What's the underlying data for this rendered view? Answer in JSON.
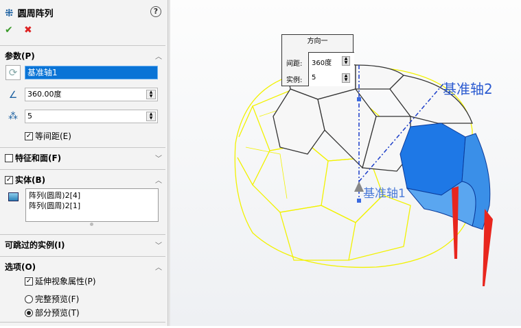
{
  "panel": {
    "title": "圆周阵列",
    "help": "?",
    "ok": "✔",
    "cancel": "✖",
    "params": {
      "title": "参数(P)",
      "axis": "基准轴1",
      "angle": "360.00度",
      "count": "5",
      "equal_spacing": "等间距(E)",
      "equal_spacing_checked": true
    },
    "features": {
      "title": "特征和面(F)",
      "checked": false
    },
    "bodies": {
      "title": "实体(B)",
      "checked": true,
      "items": [
        "阵列(圆周)2[4]",
        "阵列(圆周)2[1]"
      ]
    },
    "skip": {
      "title": "可跳过的实例(I)"
    },
    "options": {
      "title": "选项(O)",
      "propagate": "延伸视象属性(P)",
      "propagate_checked": true,
      "full_preview": "完整预览(F)",
      "partial_preview": "部分预览(T)",
      "selected": "partial"
    }
  },
  "popup": {
    "title": "方向一",
    "spacing_label": "间距:",
    "spacing": "360度",
    "count_label": "实例:",
    "count": "5"
  },
  "viewport": {
    "axis1_label": "基准轴1",
    "axis2_label": "基准轴2",
    "colors": {
      "wire": "#f2f200",
      "blue": "#1e78e6",
      "arrow": "#e8261e",
      "axis": "#1a3cc8"
    }
  }
}
